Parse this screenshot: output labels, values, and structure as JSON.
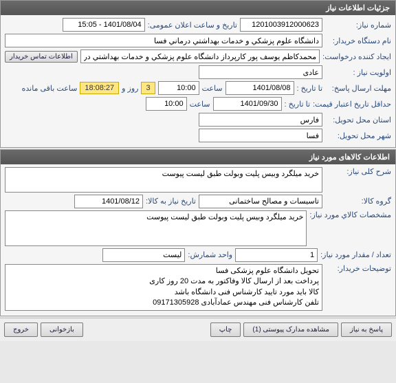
{
  "panel1": {
    "title": "جزئیات اطلاعات نیاز",
    "need_no_label": "شماره نیاز:",
    "need_no": "1201003912000623",
    "announce_label": "تاریخ و ساعت اعلان عمومی:",
    "announce": "1401/08/04 - 15:05",
    "buyer_label": "نام دستگاه خریدار:",
    "buyer": "دانشگاه علوم پزشکي و خدمات بهداشتي درماني فسا",
    "creator_label": "ایجاد کننده درخواست:",
    "creator": "محمدکاظم یوسف پور کارپرداز دانشگاه علوم پزشکي و خدمات بهداشتي درماني ف",
    "contact_btn": "اطلاعات تماس خریدار",
    "priority_label": "اولویت نیاز :",
    "priority": "عادی",
    "reply_deadline_label": "مهلت ارسال پاسخ:",
    "until_label": "تا تاریخ :",
    "reply_date": "1401/08/08",
    "time_label": "ساعت",
    "reply_time": "10:00",
    "days_box": "3",
    "days_word": "روز و",
    "countdown": "18:08:27",
    "countdown_suffix": "ساعت باقی مانده",
    "price_valid_label": "حداقل تاریخ اعتبار قیمت:",
    "price_date": "1401/09/30",
    "price_time": "10:00",
    "province_label": "استان محل تحویل:",
    "province": "فارس",
    "city_label": "شهر محل تحویل:",
    "city": "فسا"
  },
  "panel2": {
    "title": "اطلاعات کالاهای مورد نیاز",
    "desc_label": "شرح کلی نیاز:",
    "desc": "خرید میلگرد وبیس پلیت وبولت طبق لیست پیوست",
    "group_label": "گروه کالا:",
    "group": "تاسیسات و مصالح ساختمانی",
    "need_date_label": "تاریخ نیاز به کالا:",
    "need_date": "1401/08/12",
    "spec_label": "مشخصات کالاي مورد نیاز:",
    "spec": "خرید میلگرد وبیس پلیت وبولت طبق لیست پیوست",
    "qty_label": "تعداد / مقدار مورد نیاز:",
    "qty": "1",
    "unit_label": "واحد شمارش:",
    "unit": "لیست",
    "notes_label": "توضیحات خریدار:",
    "notes": "تحویل دانشگاه علوم پزشکی فسا\nپرداخت بعد از ارسال کالا وفاکتور به مدت 20 روز کاری\nکالا باید مورد تایید کارشناس فنی دانشگاه باشد\nتلفن کارشناس فنی مهندس عمادآبادی 09171305928"
  },
  "buttons": {
    "reply": "پاسخ به نیاز",
    "attachments": "مشاهده مدارک پیوستی (1)",
    "print": "چاپ",
    "refresh": "بازخوانی",
    "exit": "خروج"
  }
}
